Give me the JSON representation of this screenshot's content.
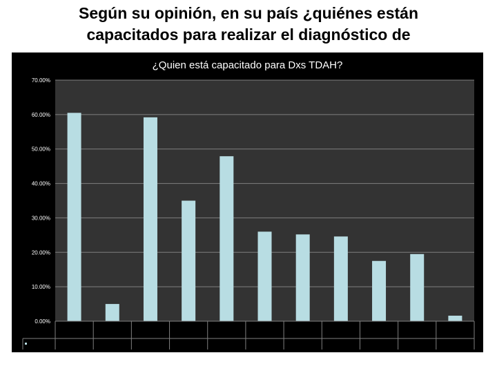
{
  "slide": {
    "title_line1": "Según su opinión, en su país ¿quiénes están",
    "title_line2": "capacitados para realizar el diagnóstico de"
  },
  "chart_data": {
    "type": "bar",
    "title": "¿Quien está capacitado para Dxs TDAH?",
    "xlabel": "",
    "ylabel": "",
    "categories": [
      "",
      "",
      "",
      "",
      "",
      "",
      "",
      "",
      "",
      "",
      ""
    ],
    "values": [
      60.5,
      5.0,
      59.2,
      35.0,
      47.9,
      26.0,
      25.2,
      24.6,
      17.5,
      19.5,
      1.6
    ],
    "ylim": [
      0,
      70
    ],
    "yticks": [
      "0.00%",
      "10.00%",
      "20.00%",
      "30.00%",
      "40.00%",
      "50.00%",
      "60.00%",
      "70.00%"
    ],
    "grid": true,
    "legend": "bottom-left",
    "colors": {
      "bar": "#b8dde3",
      "frame_bg": "#000000",
      "plot_bg": "#333333",
      "grid": "#808080",
      "text": "#ffffff"
    }
  }
}
